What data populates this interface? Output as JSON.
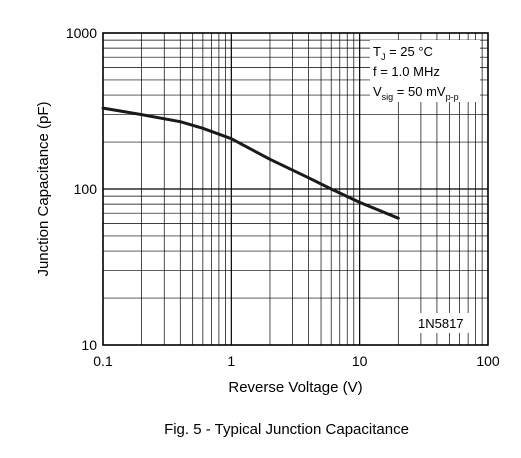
{
  "chart_data": {
    "type": "line",
    "x_scale": "log",
    "y_scale": "log",
    "xlim": [
      0.1,
      100
    ],
    "ylim": [
      10,
      1000
    ],
    "xlabel": "Reverse Voltage (V)",
    "ylabel": "Junction Capacitance (pF)",
    "x_ticks": [
      "0.1",
      "1",
      "10",
      "100"
    ],
    "y_ticks": [
      "10",
      "100",
      "1000"
    ],
    "grid": true,
    "series": [
      {
        "x": [
          0.1,
          0.2,
          0.4,
          0.6,
          1,
          2,
          4,
          6,
          10,
          20
        ],
        "y": [
          330,
          300,
          270,
          245,
          210,
          155,
          118,
          100,
          82,
          65
        ]
      }
    ],
    "conditions": {
      "tj": {
        "main": "T",
        "sub": "J",
        "rest": " = 25 °C"
      },
      "freq": "f = 1.0 MHz",
      "vsig": {
        "main": "V",
        "sub": "sig",
        "rest": " = 50 mV",
        "sub2": "p-p"
      }
    },
    "part_label": "1N5817",
    "caption": "Fig. 5 - Typical Junction Capacitance",
    "line_color": "#1a1a1a",
    "grid_color": "#000000"
  }
}
